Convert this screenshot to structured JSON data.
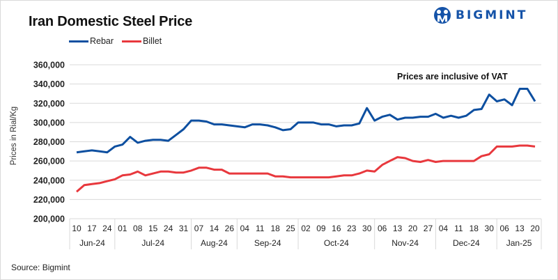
{
  "logo": {
    "brand": "BIGMINT",
    "icon": "bigmint-people-icon",
    "color": "#1553a8"
  },
  "source": "Source: Bigmint",
  "chart_data": {
    "type": "line",
    "title": "Iran Domestic Steel Price",
    "xlabel": "",
    "ylabel": "Prices in Rial/Kg",
    "annotation": "Prices are inclusive  of VAT",
    "ylim": [
      200000,
      360000
    ],
    "yticks": [
      200000,
      220000,
      240000,
      260000,
      280000,
      300000,
      320000,
      340000,
      360000
    ],
    "ytick_labels": [
      "200,000",
      "220,000",
      "240,000",
      "260,000",
      "280,000",
      "300,000",
      "320,000",
      "340,000",
      "360,000"
    ],
    "grid": true,
    "legend_position": "top-left",
    "x_day_labels": [
      "10",
      "17",
      "24",
      "01",
      "08",
      "15",
      "24",
      "31",
      "07",
      "14",
      "26",
      "04",
      "11",
      "18",
      "25",
      "02",
      "09",
      "16",
      "23",
      "30",
      "06",
      "13",
      "20",
      "27",
      "04",
      "11",
      "18",
      "30",
      "06",
      "13",
      "20"
    ],
    "month_groups": [
      {
        "label": "Jun-24",
        "count": 3
      },
      {
        "label": "Jul-24",
        "count": 5
      },
      {
        "label": "Aug-24",
        "count": 3
      },
      {
        "label": "Sep-24",
        "count": 4
      },
      {
        "label": "Oct-24",
        "count": 5
      },
      {
        "label": "Nov-24",
        "count": 4
      },
      {
        "label": "Dec-24",
        "count": 4
      },
      {
        "label": "Jan-25",
        "count": 3
      }
    ],
    "series": [
      {
        "name": "Rebar",
        "color": "#0d4fa0",
        "values": [
          269000,
          270000,
          271000,
          270000,
          269000,
          275000,
          277000,
          285000,
          279000,
          281000,
          282000,
          282000,
          281000,
          287000,
          293000,
          302000,
          302000,
          301000,
          298000,
          298000,
          297000,
          296000,
          295000,
          298000,
          298000,
          297000,
          295000,
          292000,
          293000,
          300000,
          300000,
          300000,
          298000,
          298000,
          296000,
          297000,
          297000,
          299000,
          315000,
          302000,
          306000,
          308000,
          303000,
          305000,
          305000,
          306000,
          306000,
          309000,
          305000,
          307000,
          305000,
          307000,
          313000,
          314000,
          329000,
          322000,
          324000,
          318000,
          335000,
          335000,
          322000
        ]
      },
      {
        "name": "Billet",
        "color": "#e8383d",
        "values": [
          228000,
          235000,
          236000,
          237000,
          239000,
          241000,
          245000,
          246000,
          249000,
          245000,
          247000,
          249000,
          249000,
          248000,
          248000,
          250000,
          253000,
          253000,
          251000,
          251000,
          247000,
          247000,
          247000,
          247000,
          247000,
          247000,
          244000,
          244000,
          243000,
          243000,
          243000,
          243000,
          243000,
          243000,
          244000,
          245000,
          245000,
          247000,
          250000,
          249000,
          256000,
          260000,
          264000,
          263000,
          260000,
          259000,
          261000,
          259000,
          260000,
          260000,
          260000,
          260000,
          260000,
          265000,
          267000,
          275000,
          275000,
          275000,
          276000,
          276000,
          275000
        ]
      }
    ]
  }
}
